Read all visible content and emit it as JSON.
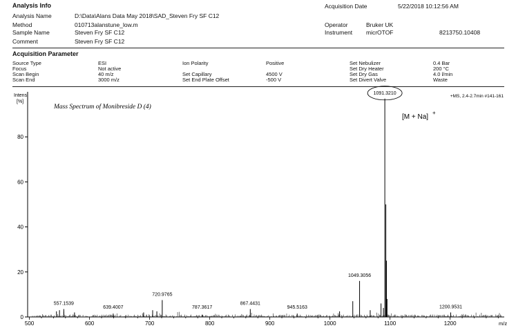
{
  "analysis_info": {
    "heading": "Analysis Info",
    "rows": [
      {
        "label": "Analysis Name",
        "value": "D:\\Data\\Alans Data May 2018\\SAD_Steven Fry  SF C12"
      },
      {
        "label": "Method",
        "value": "010713alanstune_low.m"
      },
      {
        "label": "Sample Name",
        "value": "Steven Fry  SF C12"
      },
      {
        "label": "Comment",
        "value": "Steven Fry  SF C12"
      }
    ],
    "acq_date_label": "Acquisition Date",
    "acq_date_value": "5/22/2018 10:12:56 AM",
    "operator_label": "Operator",
    "operator_value": "Bruker UK",
    "instrument_label": "Instrument",
    "instrument_value": "micrOTOF",
    "instrument_serial": "8213750.10408"
  },
  "acquisition_parameter": {
    "heading": "Acquisition Parameter",
    "col1": [
      {
        "label": "Source Type",
        "value": "ESI"
      },
      {
        "label": "Focus",
        "value": "Not active"
      },
      {
        "label": "Scan Begin",
        "value": "40 m/z"
      },
      {
        "label": "Scan End",
        "value": "3000 m/z"
      }
    ],
    "col2": [
      {
        "label": "Ion Polarity",
        "value": "Positive"
      },
      {
        "label": "",
        "value": ""
      },
      {
        "label": "Set Capillary",
        "value": "4500 V"
      },
      {
        "label": "Set End Plate Offset",
        "value": "-500 V"
      }
    ],
    "col3": [
      {
        "label": "Set Nebulizer",
        "value": "0.4 Bar"
      },
      {
        "label": "Set Dry Heater",
        "value": "200 °C"
      },
      {
        "label": "Set Dry Gas",
        "value": "4.0 l/min"
      },
      {
        "label": "Set Divert Valve",
        "value": "Waste"
      }
    ]
  },
  "chart_data": {
    "type": "line",
    "title": "Mass Spectrum of Monibreside D (4)",
    "ylabel_line1": "Intens.",
    "ylabel_line2": "[%]",
    "xlabel": "m/z",
    "scan_info": "+MS, 2.4-2.7min #141-161",
    "adduct_label": "[M + Na]",
    "adduct_charge": "+",
    "xlim": [
      497,
      1290
    ],
    "ylim": [
      0,
      100
    ],
    "xticks": [
      500,
      600,
      700,
      800,
      900,
      1000,
      1100,
      1200
    ],
    "yticks": [
      0,
      20,
      40,
      60,
      80
    ],
    "peaks": [
      {
        "mz": 557.1539,
        "intensity": 3.5,
        "label": "557.1539"
      },
      {
        "mz": 639.4007,
        "intensity": 1.5,
        "label": "639.4007"
      },
      {
        "mz": 720.9765,
        "intensity": 7.5,
        "label": "720.9765"
      },
      {
        "mz": 787.3617,
        "intensity": 1.0,
        "label": "787.3617"
      },
      {
        "mz": 867.4431,
        "intensity": 3.5,
        "label": "867.4431"
      },
      {
        "mz": 945.5163,
        "intensity": 1.5,
        "label": "945.5163"
      },
      {
        "mz": 1049.3056,
        "intensity": 16.0,
        "label": "1049.3056"
      },
      {
        "mz": 1091.321,
        "intensity": 97.0,
        "label": "1091.3210"
      },
      {
        "mz": 1200.9531,
        "intensity": 2.0,
        "label": "1200.9531"
      },
      {
        "mz": 1038.0,
        "intensity": 7.0,
        "label": ""
      },
      {
        "mz": 1085.0,
        "intensity": 6.0,
        "label": ""
      },
      {
        "mz": 1093.0,
        "intensity": 50.0,
        "label": ""
      },
      {
        "mz": 1094.0,
        "intensity": 25.0,
        "label": ""
      },
      {
        "mz": 1095.0,
        "intensity": 8.0,
        "label": ""
      },
      {
        "mz": 1089.0,
        "intensity": 4.0,
        "label": ""
      },
      {
        "mz": 545.0,
        "intensity": 2.5,
        "label": ""
      },
      {
        "mz": 550.0,
        "intensity": 3.0,
        "label": ""
      },
      {
        "mz": 575.0,
        "intensity": 2.0,
        "label": ""
      },
      {
        "mz": 690.0,
        "intensity": 2.0,
        "label": ""
      },
      {
        "mz": 705.0,
        "intensity": 3.0,
        "label": ""
      },
      {
        "mz": 712.0,
        "intensity": 2.5,
        "label": ""
      },
      {
        "mz": 1016.0,
        "intensity": 2.5,
        "label": ""
      },
      {
        "mz": 1067.0,
        "intensity": 3.0,
        "label": ""
      }
    ],
    "grid": false,
    "legend": "none"
  }
}
